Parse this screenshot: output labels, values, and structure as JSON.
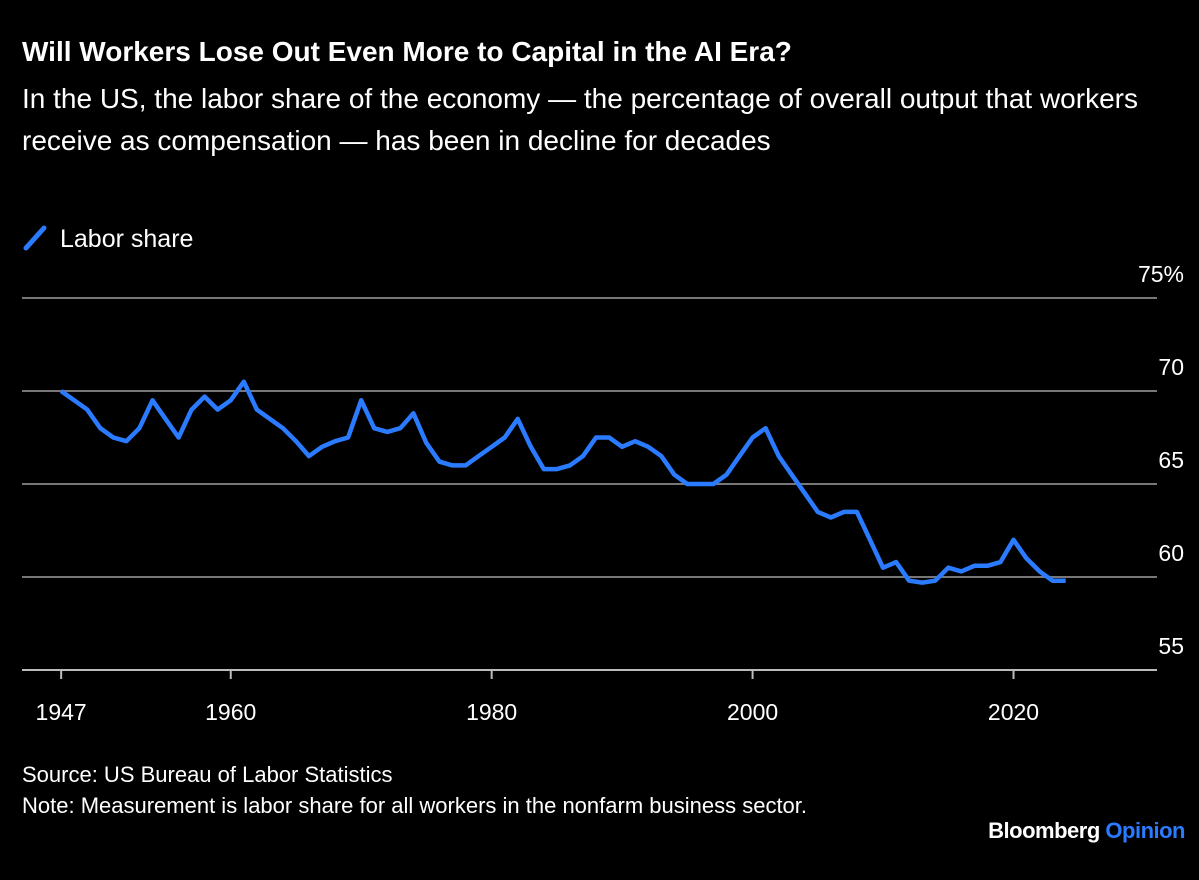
{
  "chart_data": {
    "type": "line",
    "title": "Will Workers Lose Out Even More to Capital in the AI Era?",
    "subtitle": "In the US, the labor share of the economy — the percentage of overall output that workers receive as compensation — has been in decline for decades",
    "source": "Source: US Bureau of Labor Statistics",
    "note": "Note: Measurement is labor share for all workers in the nonfarm business sector.",
    "brand": "Bloomberg",
    "brand_section": "Opinion",
    "x": [
      1947,
      1948,
      1949,
      1950,
      1951,
      1952,
      1953,
      1954,
      1955,
      1956,
      1957,
      1958,
      1959,
      1960,
      1961,
      1962,
      1963,
      1964,
      1965,
      1966,
      1967,
      1968,
      1969,
      1970,
      1971,
      1972,
      1973,
      1974,
      1975,
      1976,
      1977,
      1978,
      1979,
      1980,
      1981,
      1982,
      1983,
      1984,
      1985,
      1986,
      1987,
      1988,
      1989,
      1990,
      1991,
      1992,
      1993,
      1994,
      1995,
      1996,
      1997,
      1998,
      1999,
      2000,
      2001,
      2002,
      2003,
      2004,
      2005,
      2006,
      2007,
      2008,
      2009,
      2010,
      2011,
      2012,
      2013,
      2014,
      2015,
      2016,
      2017,
      2018,
      2019,
      2020,
      2021,
      2022,
      2023,
      2024
    ],
    "series": [
      {
        "name": "Labor share",
        "color": "#2a7bff",
        "values": [
          70,
          69.5,
          69,
          68,
          67.5,
          67.3,
          68,
          69.5,
          68.5,
          67.5,
          69,
          69.7,
          69,
          69.5,
          70.5,
          69,
          68.5,
          68,
          67.3,
          66.5,
          67,
          67.3,
          67.5,
          69.5,
          68,
          67.8,
          68,
          68.8,
          67.2,
          66.2,
          66,
          66,
          66.5,
          67,
          67.5,
          68.5,
          67,
          65.8,
          65.8,
          66,
          66.5,
          67.5,
          67.5,
          67,
          67.3,
          67,
          66.5,
          65.5,
          65,
          65,
          65,
          65.5,
          66.5,
          67.5,
          68,
          66.5,
          65.5,
          64.5,
          63.5,
          63.2,
          63.5,
          63.5,
          62,
          60.5,
          60.8,
          59.8,
          59.7,
          59.8,
          60.5,
          60.3,
          60.6,
          60.6,
          60.8,
          62,
          61,
          60.3,
          59.8,
          59.8
        ]
      }
    ],
    "xlim": [
      1944,
      2031
    ],
    "xticks": [
      1947,
      1960,
      1980,
      2000,
      2020
    ],
    "ylim": [
      55,
      75
    ],
    "yticks": [
      55,
      60,
      65,
      70,
      {
        "value": 75,
        "label": "75%"
      }
    ],
    "grid": true,
    "legend": "top-left"
  }
}
